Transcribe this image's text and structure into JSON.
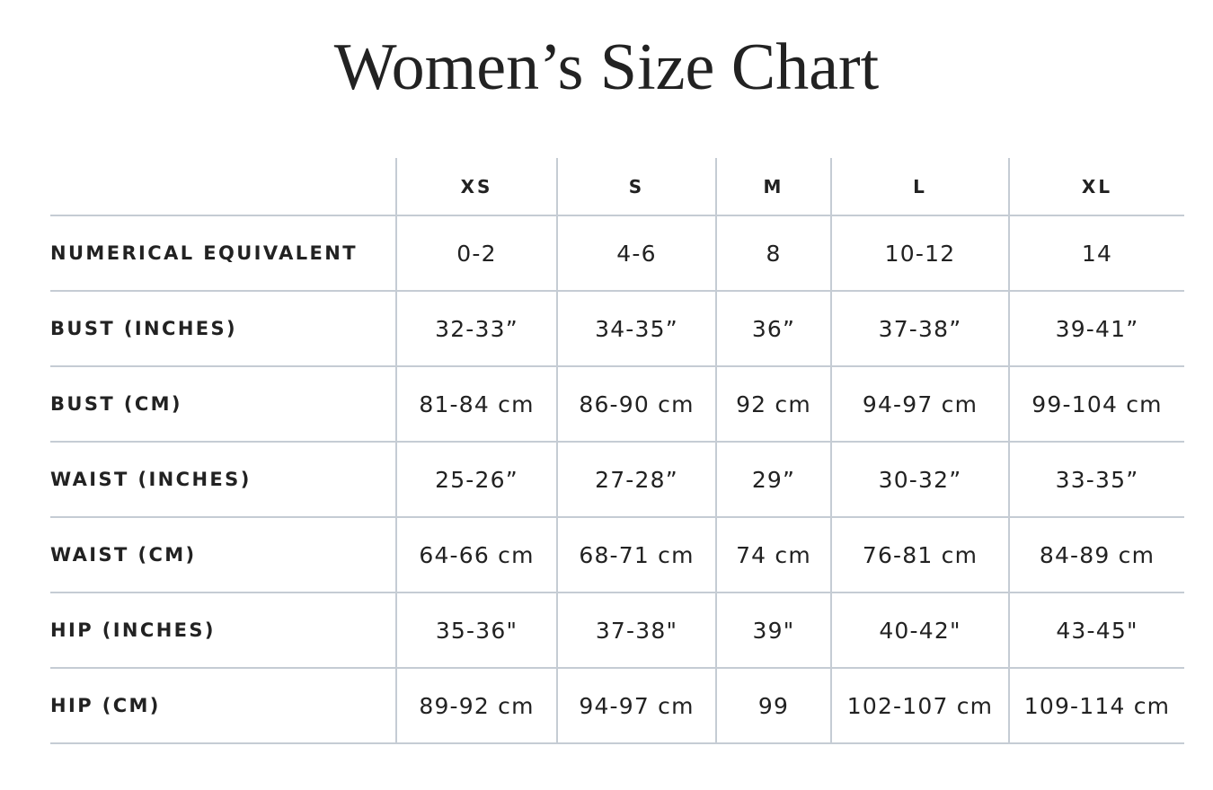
{
  "title": "Women’s Size Chart",
  "table": {
    "columns": [
      "XS",
      "S",
      "M",
      "L",
      "XL"
    ],
    "rows": [
      {
        "label": "NUMERICAL EQUIVALENT",
        "cells": [
          "0-2",
          "4-6",
          "8",
          "10-12",
          "14"
        ]
      },
      {
        "label": "BUST (INCHES)",
        "cells": [
          "32-33”",
          "34-35”",
          "36”",
          "37-38”",
          "39-41”"
        ]
      },
      {
        "label": "BUST (CM)",
        "cells": [
          "81-84 cm",
          "86-90 cm",
          "92 cm",
          "94-97 cm",
          "99-104 cm"
        ]
      },
      {
        "label": "WAIST (INCHES)",
        "cells": [
          "25-26”",
          "27-28”",
          "29”",
          "30-32”",
          "33-35”"
        ]
      },
      {
        "label": "WAIST (CM)",
        "cells": [
          "64-66 cm",
          "68-71 cm",
          "74 cm",
          "76-81 cm",
          "84-89 cm"
        ]
      },
      {
        "label": "HIP (INCHES)",
        "cells": [
          "35-36\"",
          "37-38\"",
          "39\"",
          "40-42\"",
          "43-45\""
        ]
      },
      {
        "label": "HIP (CM)",
        "cells": [
          "89-92 cm",
          "94-97 cm",
          "99",
          "102-107 cm",
          "109-114 cm"
        ]
      }
    ]
  }
}
